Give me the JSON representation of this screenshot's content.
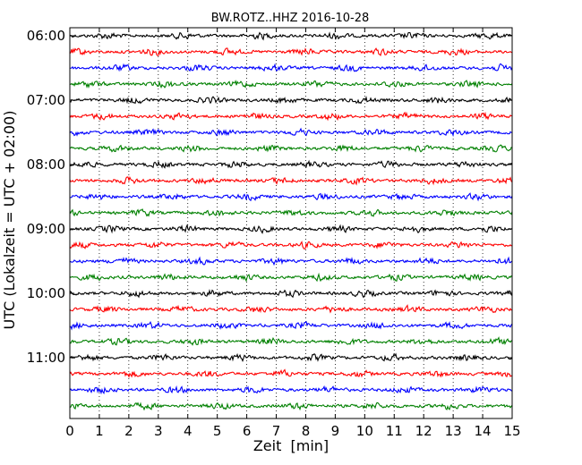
{
  "chart_data": {
    "type": "line",
    "title": "BW.ROTZ..HHZ 2016-10-28",
    "xlabel": "Zeit  [min]",
    "ylabel": "UTC (Lokalzeit = UTC + 02:00)",
    "xlim": [
      0,
      15
    ],
    "x_ticks": [
      "0",
      "1",
      "2",
      "3",
      "4",
      "5",
      "6",
      "7",
      "8",
      "9",
      "10",
      "11",
      "12",
      "13",
      "14",
      "15"
    ],
    "y_tick_labels": [
      "06:00",
      "07:00",
      "08:00",
      "09:00",
      "10:00",
      "11:00"
    ],
    "grid": "vertical-dotted",
    "trace_interval_min": 15,
    "trace_colors": [
      "#000000",
      "#ff0000",
      "#0000ff",
      "#008000"
    ],
    "series": [
      {
        "values": [
          0
        ]
      },
      {
        "values": [
          0
        ]
      },
      {
        "values": [
          0
        ]
      },
      {
        "values": [
          0
        ]
      },
      {
        "values": [
          0
        ]
      },
      {
        "values": [
          0
        ]
      },
      {
        "values": [
          0
        ]
      },
      {
        "values": [
          0
        ]
      },
      {
        "values": [
          0
        ]
      },
      {
        "values": [
          0
        ]
      },
      {
        "values": [
          0
        ]
      },
      {
        "values": [
          0
        ]
      },
      {
        "values": [
          0
        ]
      },
      {
        "values": [
          0
        ]
      },
      {
        "values": [
          0
        ]
      },
      {
        "values": [
          0
        ]
      },
      {
        "values": [
          0
        ]
      },
      {
        "values": [
          0
        ]
      },
      {
        "values": [
          0
        ]
      },
      {
        "values": [
          0
        ]
      },
      {
        "values": [
          0
        ]
      },
      {
        "values": [
          0
        ]
      },
      {
        "values": [
          0
        ]
      },
      {
        "values": [
          0
        ]
      }
    ]
  }
}
